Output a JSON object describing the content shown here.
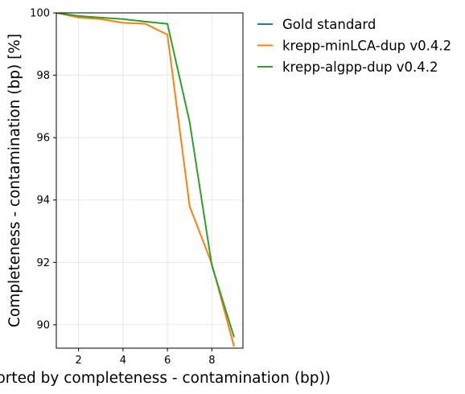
{
  "chart_data": {
    "type": "line",
    "title": "",
    "xlabel": "n (sorted by completeness - contamination (bp))",
    "ylabel": "Completeness - contamination (bp) [%]",
    "xlim": [
      1,
      9.4
    ],
    "ylim": [
      89.25,
      100
    ],
    "xticks": [
      2,
      4,
      6,
      8
    ],
    "yticks": [
      90,
      92,
      94,
      96,
      98,
      100
    ],
    "xtick_labels": [
      "2",
      "4",
      "6",
      "8"
    ],
    "ytick_labels": [
      "90",
      "92",
      "94",
      "96",
      "98",
      "100"
    ],
    "grid": true,
    "legend_placement": "outside right, top",
    "series": [
      {
        "name": "Gold standard",
        "color": "#1f77b4",
        "x": [],
        "y": []
      },
      {
        "name": "krepp-minLCA-dup v0.4.2",
        "color": "#ff7f0e",
        "x": [
          1,
          2,
          3,
          4,
          5,
          6,
          7,
          8,
          9
        ],
        "y": [
          100,
          99.85,
          99.8,
          99.68,
          99.65,
          99.3,
          93.8,
          91.95,
          89.3
        ]
      },
      {
        "name": "krepp-algpp-dup v0.4.2",
        "color": "#2ca02c",
        "x": [
          1,
          2,
          3,
          4,
          5,
          6,
          7,
          8,
          9
        ],
        "y": [
          100,
          99.9,
          99.85,
          99.8,
          99.72,
          99.65,
          96.5,
          91.9,
          89.6
        ]
      }
    ]
  }
}
